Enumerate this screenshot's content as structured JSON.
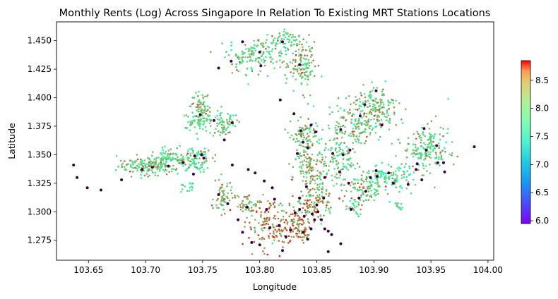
{
  "chart_data": {
    "type": "scatter",
    "title": "Monthly Rents (Log) Across Singapore In Relation To Existing MRT Stations Locations",
    "xlabel": "Longitude",
    "ylabel": "Latitude",
    "xlim": [
      103.622,
      104.005
    ],
    "ylim": [
      1.2575,
      1.4665
    ],
    "x_ticks": [
      "103.65",
      "103.70",
      "103.75",
      "103.80",
      "103.85",
      "103.90",
      "103.95",
      "104.00"
    ],
    "y_ticks": [
      "1.275",
      "1.300",
      "1.325",
      "1.350",
      "1.375",
      "1.400",
      "1.425",
      "1.450"
    ],
    "colorbar": {
      "cmap": "rainbow",
      "range": [
        5.95,
        8.85
      ],
      "ticks": [
        "6.0",
        "6.5",
        "7.0",
        "7.5",
        "8.0",
        "8.5"
      ]
    },
    "grid": false,
    "rent_clusters": [
      {
        "x": 103.7,
        "y": 1.34,
        "sx": 0.012,
        "sy": 0.004,
        "n": 140,
        "mean": 8.0
      },
      {
        "x": 103.722,
        "y": 1.346,
        "sx": 0.009,
        "sy": 0.005,
        "n": 110,
        "mean": 7.9
      },
      {
        "x": 103.744,
        "y": 1.346,
        "sx": 0.007,
        "sy": 0.005,
        "n": 90,
        "mean": 7.9
      },
      {
        "x": 103.748,
        "y": 1.392,
        "sx": 0.004,
        "sy": 0.007,
        "n": 70,
        "mean": 8.0
      },
      {
        "x": 103.745,
        "y": 1.38,
        "sx": 0.007,
        "sy": 0.004,
        "n": 60,
        "mean": 7.9
      },
      {
        "x": 103.768,
        "y": 1.378,
        "sx": 0.006,
        "sy": 0.006,
        "n": 70,
        "mean": 7.8
      },
      {
        "x": 103.796,
        "y": 1.437,
        "sx": 0.013,
        "sy": 0.008,
        "n": 150,
        "mean": 7.9
      },
      {
        "x": 103.825,
        "y": 1.449,
        "sx": 0.008,
        "sy": 0.005,
        "n": 70,
        "mean": 8.0
      },
      {
        "x": 103.838,
        "y": 1.426,
        "sx": 0.006,
        "sy": 0.01,
        "n": 110,
        "mean": 8.0
      },
      {
        "x": 103.768,
        "y": 1.312,
        "sx": 0.004,
        "sy": 0.007,
        "n": 60,
        "mean": 8.1
      },
      {
        "x": 103.79,
        "y": 1.307,
        "sx": 0.006,
        "sy": 0.004,
        "n": 50,
        "mean": 8.2
      },
      {
        "x": 103.808,
        "y": 1.287,
        "sx": 0.009,
        "sy": 0.01,
        "n": 120,
        "mean": 8.3
      },
      {
        "x": 103.833,
        "y": 1.288,
        "sx": 0.007,
        "sy": 0.009,
        "n": 100,
        "mean": 8.4
      },
      {
        "x": 103.848,
        "y": 1.312,
        "sx": 0.008,
        "sy": 0.012,
        "n": 150,
        "mean": 8.2
      },
      {
        "x": 103.843,
        "y": 1.34,
        "sx": 0.007,
        "sy": 0.006,
        "n": 90,
        "mean": 8.1
      },
      {
        "x": 103.84,
        "y": 1.366,
        "sx": 0.006,
        "sy": 0.008,
        "n": 90,
        "mean": 8.0
      },
      {
        "x": 103.87,
        "y": 1.345,
        "sx": 0.008,
        "sy": 0.01,
        "n": 100,
        "mean": 7.9
      },
      {
        "x": 103.88,
        "y": 1.375,
        "sx": 0.01,
        "sy": 0.01,
        "n": 130,
        "mean": 8.0
      },
      {
        "x": 103.902,
        "y": 1.39,
        "sx": 0.01,
        "sy": 0.009,
        "n": 170,
        "mean": 8.0
      },
      {
        "x": 103.915,
        "y": 1.33,
        "sx": 0.012,
        "sy": 0.005,
        "n": 120,
        "mean": 7.8
      },
      {
        "x": 103.946,
        "y": 1.356,
        "sx": 0.01,
        "sy": 0.01,
        "n": 170,
        "mean": 7.9
      },
      {
        "x": 103.89,
        "y": 1.32,
        "sx": 0.01,
        "sy": 0.008,
        "n": 90,
        "mean": 8.0
      },
      {
        "x": 103.92,
        "y": 1.304,
        "sx": 0.003,
        "sy": 0.002,
        "n": 15,
        "mean": 7.8
      },
      {
        "x": 103.737,
        "y": 1.321,
        "sx": 0.003,
        "sy": 0.002,
        "n": 15,
        "mean": 7.8
      },
      {
        "x": 103.885,
        "y": 1.305,
        "sx": 0.005,
        "sy": 0.004,
        "n": 25,
        "mean": 7.9
      }
    ],
    "mrt_stations": [
      [
        103.637,
        1.341
      ],
      [
        103.64,
        1.33
      ],
      [
        103.649,
        1.321
      ],
      [
        103.661,
        1.319
      ],
      [
        103.679,
        1.328
      ],
      [
        103.697,
        1.337
      ],
      [
        103.706,
        1.339
      ],
      [
        103.72,
        1.34
      ],
      [
        103.733,
        1.343
      ],
      [
        103.742,
        1.333
      ],
      [
        103.743,
        1.349
      ],
      [
        103.749,
        1.35
      ],
      [
        103.751,
        1.347
      ],
      [
        103.764,
        1.315
      ],
      [
        103.772,
        1.307
      ],
      [
        103.769,
        1.363
      ],
      [
        103.764,
        1.426
      ],
      [
        103.776,
        1.341
      ],
      [
        103.79,
        1.337
      ],
      [
        103.796,
        1.334
      ],
      [
        103.804,
        1.327
      ],
      [
        103.811,
        1.321
      ],
      [
        103.813,
        1.311
      ],
      [
        103.806,
        1.302
      ],
      [
        103.789,
        1.304
      ],
      [
        103.785,
        1.282
      ],
      [
        103.781,
        1.293
      ],
      [
        103.793,
        1.273
      ],
      [
        103.8,
        1.271
      ],
      [
        103.809,
        1.286
      ],
      [
        103.817,
        1.288
      ],
      [
        103.823,
        1.278
      ],
      [
        103.82,
        1.266
      ],
      [
        103.827,
        1.284
      ],
      [
        103.831,
        1.299
      ],
      [
        103.835,
        1.302
      ],
      [
        103.839,
        1.296
      ],
      [
        103.838,
        1.282
      ],
      [
        103.842,
        1.276
      ],
      [
        103.845,
        1.285
      ],
      [
        103.848,
        1.293
      ],
      [
        103.851,
        1.3
      ],
      [
        103.854,
        1.293
      ],
      [
        103.857,
        1.285
      ],
      [
        103.86,
        1.283
      ],
      [
        103.863,
        1.28
      ],
      [
        103.856,
        1.312
      ],
      [
        103.857,
        1.33
      ],
      [
        103.85,
        1.306
      ],
      [
        103.846,
        1.298
      ],
      [
        103.841,
        1.322
      ],
      [
        103.835,
        1.312
      ],
      [
        103.833,
        1.351
      ],
      [
        103.842,
        1.356
      ],
      [
        103.836,
        1.371
      ],
      [
        103.838,
        1.361
      ],
      [
        103.83,
        1.386
      ],
      [
        103.845,
        1.376
      ],
      [
        103.849,
        1.37
      ],
      [
        103.835,
        1.429
      ],
      [
        103.82,
        1.449
      ],
      [
        103.8,
        1.44
      ],
      [
        103.801,
        1.428
      ],
      [
        103.785,
        1.449
      ],
      [
        103.775,
        1.432
      ],
      [
        103.748,
        1.385
      ],
      [
        103.76,
        1.38
      ],
      [
        103.776,
        1.378
      ],
      [
        103.818,
        1.398
      ],
      [
        103.871,
        1.372
      ],
      [
        103.888,
        1.384
      ],
      [
        103.892,
        1.394
      ],
      [
        103.902,
        1.406
      ],
      [
        103.907,
        1.376
      ],
      [
        103.879,
        1.354
      ],
      [
        103.873,
        1.35
      ],
      [
        103.864,
        1.351
      ],
      [
        103.87,
        1.335
      ],
      [
        103.878,
        1.325
      ],
      [
        103.893,
        1.318
      ],
      [
        103.903,
        1.331
      ],
      [
        103.913,
        1.334
      ],
      [
        103.93,
        1.324
      ],
      [
        103.937,
        1.337
      ],
      [
        103.946,
        1.354
      ],
      [
        103.955,
        1.358
      ],
      [
        103.944,
        1.373
      ],
      [
        103.962,
        1.335
      ],
      [
        103.961,
        1.343
      ],
      [
        103.988,
        1.357
      ],
      [
        103.871,
        1.272
      ],
      [
        103.86,
        1.265
      ],
      [
        103.88,
        1.302
      ],
      [
        103.887,
        1.312
      ],
      [
        103.902,
        1.336
      ],
      [
        103.897,
        1.33
      ],
      [
        103.917,
        1.325
      ],
      [
        103.942,
        1.328
      ],
      [
        103.956,
        1.343
      ],
      [
        103.938,
        1.342
      ]
    ]
  }
}
